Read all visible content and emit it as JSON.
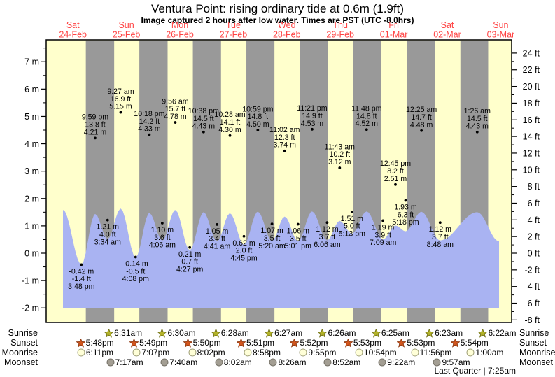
{
  "title": "Ventura Point: rising  ordinary tide at 0.6m (1.9ft)",
  "subtitle": "Image captured 2 hours after low water. Times are PST (UTC -8.0hrs)",
  "chart_data": {
    "type": "area",
    "title": "Ventura Point: rising ordinary tide at 0.6m (1.9ft)",
    "grid": false,
    "legend_position": "none",
    "x_axis": {
      "days": [
        {
          "weekday": "Sat",
          "date": "24-Feb"
        },
        {
          "weekday": "Sun",
          "date": "25-Feb"
        },
        {
          "weekday": "Mon",
          "date": "26-Feb"
        },
        {
          "weekday": "Tue",
          "date": "27-Feb"
        },
        {
          "weekday": "Wed",
          "date": "28-Feb"
        },
        {
          "weekday": "Thu",
          "date": "29-Feb"
        },
        {
          "weekday": "Fri",
          "date": "01-Mar"
        },
        {
          "weekday": "Sat",
          "date": "02-Mar"
        },
        {
          "weekday": "Sun",
          "date": "03-Mar"
        }
      ]
    },
    "y_left": {
      "unit": "m",
      "min": -2,
      "max": 7,
      "ticks": [
        {
          "v": 7,
          "label": "7 m"
        },
        {
          "v": 6,
          "label": "6 m"
        },
        {
          "v": 5,
          "label": "5 m"
        },
        {
          "v": 4,
          "label": "4 m"
        },
        {
          "v": 3,
          "label": "3 m"
        },
        {
          "v": 2,
          "label": "2 m"
        },
        {
          "v": 1,
          "label": "1 m"
        },
        {
          "v": 0,
          "label": "0 m"
        },
        {
          "v": -1,
          "label": "-1 m"
        },
        {
          "v": -2,
          "label": "-2 m"
        }
      ]
    },
    "y_right": {
      "unit": "ft",
      "min": -8,
      "max": 24,
      "ticks": [
        {
          "v": 24,
          "label": "24 ft"
        },
        {
          "v": 22,
          "label": "22 ft"
        },
        {
          "v": 20,
          "label": "20 ft"
        },
        {
          "v": 18,
          "label": "18 ft"
        },
        {
          "v": 16,
          "label": "16 ft"
        },
        {
          "v": 14,
          "label": "14 ft"
        },
        {
          "v": 12,
          "label": "12 ft"
        },
        {
          "v": 10,
          "label": "10 ft"
        },
        {
          "v": 8,
          "label": "8 ft"
        },
        {
          "v": 6,
          "label": "6 ft"
        },
        {
          "v": 4,
          "label": "4 ft"
        },
        {
          "v": 2,
          "label": "2 ft"
        },
        {
          "v": 0,
          "label": "0 ft"
        },
        {
          "v": -2,
          "label": "-2 ft"
        },
        {
          "v": -4,
          "label": "-4 ft"
        },
        {
          "v": -6,
          "label": "-6 ft"
        },
        {
          "v": -8,
          "label": "-8 ft"
        }
      ]
    },
    "tide_events": [
      {
        "type": "low",
        "day": 0,
        "time": "3:48 pm",
        "ft": "-1.4 ft",
        "m": "-0.42 m",
        "m_val": -0.42
      },
      {
        "type": "high",
        "day": 0,
        "time": "9:59 pm",
        "ft": "13.8 ft",
        "m": "4.21 m",
        "m_val": 4.21
      },
      {
        "type": "low",
        "day": 1,
        "time": "3:34 am",
        "ft": "4.0 ft",
        "m": "1.21 m",
        "m_val": 1.21
      },
      {
        "type": "high",
        "day": 1,
        "time": "9:27 am",
        "ft": "16.9 ft",
        "m": "5.15 m",
        "m_val": 5.15
      },
      {
        "type": "low",
        "day": 1,
        "time": "4:08 pm",
        "ft": "-0.5 ft",
        "m": "-0.14 m",
        "m_val": -0.14
      },
      {
        "type": "high",
        "day": 1,
        "time": "10:18 pm",
        "ft": "14.2 ft",
        "m": "4.33 m",
        "m_val": 4.33
      },
      {
        "type": "low",
        "day": 2,
        "time": "4:06 am",
        "ft": "3.6 ft",
        "m": "1.10 m",
        "m_val": 1.1
      },
      {
        "type": "high",
        "day": 2,
        "time": "9:56 am",
        "ft": "15.7 ft",
        "m": "4.78 m",
        "m_val": 4.78
      },
      {
        "type": "low",
        "day": 2,
        "time": "4:27 pm",
        "ft": "0.7 ft",
        "m": "0.21 m",
        "m_val": 0.21
      },
      {
        "type": "high",
        "day": 2,
        "time": "10:38 pm",
        "ft": "14.5 ft",
        "m": "4.43 m",
        "m_val": 4.43
      },
      {
        "type": "low",
        "day": 3,
        "time": "4:41 am",
        "ft": "3.4 ft",
        "m": "1.05 m",
        "m_val": 1.05
      },
      {
        "type": "high",
        "day": 3,
        "time": "10:28 am",
        "ft": "14.1 ft",
        "m": "4.30 m",
        "m_val": 4.3
      },
      {
        "type": "low",
        "day": 3,
        "time": "4:45 pm",
        "ft": "2.0 ft",
        "m": "0.62 m",
        "m_val": 0.62
      },
      {
        "type": "high",
        "day": 3,
        "time": "10:59 pm",
        "ft": "14.8 ft",
        "m": "4.50 m",
        "m_val": 4.5
      },
      {
        "type": "low",
        "day": 4,
        "time": "5:20 am",
        "ft": "3.5 ft",
        "m": "1.07 m",
        "m_val": 1.07
      },
      {
        "type": "high",
        "day": 4,
        "time": "11:02 am",
        "ft": "12.3 ft",
        "m": "3.74 m",
        "m_val": 3.74
      },
      {
        "type": "low",
        "day": 4,
        "time": "5:01 pm",
        "ft": "3.5 ft",
        "m": "1.06 m",
        "m_val": 1.06
      },
      {
        "type": "high",
        "day": 4,
        "time": "11:21 pm",
        "ft": "14.9 ft",
        "m": "4.53 m",
        "m_val": 4.53
      },
      {
        "type": "low",
        "day": 5,
        "time": "6:06 am",
        "ft": "3.7 ft",
        "m": "1.12 m",
        "m_val": 1.12
      },
      {
        "type": "high",
        "day": 5,
        "time": "11:43 am",
        "ft": "10.2 ft",
        "m": "3.12 m",
        "m_val": 3.12
      },
      {
        "type": "low",
        "day": 5,
        "time": "5:13 pm",
        "ft": "5.0 ft",
        "m": "1.51 m",
        "m_val": 1.51
      },
      {
        "type": "high",
        "day": 5,
        "time": "11:48 pm",
        "ft": "14.8 ft",
        "m": "4.52 m",
        "m_val": 4.52
      },
      {
        "type": "low",
        "day": 6,
        "time": "7:09 am",
        "ft": "3.9 ft",
        "m": "1.19 m",
        "m_val": 1.19
      },
      {
        "type": "high",
        "day": 6,
        "time": "12:45 pm",
        "ft": "8.2 ft",
        "m": "2.51 m",
        "m_val": 2.51
      },
      {
        "type": "low",
        "day": 6,
        "time": "5:18 pm",
        "ft": "6.3 ft",
        "m": "1.93 m",
        "m_val": 1.93
      },
      {
        "type": "high",
        "day": 7,
        "time": "12:25 am",
        "ft": "14.7 ft",
        "m": "4.48 m",
        "m_val": 4.48
      },
      {
        "type": "low",
        "day": 7,
        "time": "8:48 am",
        "ft": "3.7 ft",
        "m": "1.12 m",
        "m_val": 1.12
      },
      {
        "type": "high",
        "day": 8,
        "time": "1:26 am",
        "ft": "14.5 ft",
        "m": "4.43 m",
        "m_val": 4.43
      }
    ]
  },
  "almanac": {
    "row_labels": [
      "Sunrise",
      "Sunset",
      "Moonrise",
      "Moonset"
    ],
    "rows": [
      {
        "name": "sunrise",
        "icon": "sunrise-star",
        "events": [
          {
            "day": 1,
            "time": "6:31am"
          },
          {
            "day": 2,
            "time": "6:30am"
          },
          {
            "day": 3,
            "time": "6:28am"
          },
          {
            "day": 4,
            "time": "6:27am"
          },
          {
            "day": 5,
            "time": "6:26am"
          },
          {
            "day": 6,
            "time": "6:25am"
          },
          {
            "day": 7,
            "time": "6:23am"
          },
          {
            "day": 8,
            "time": "6:22am"
          }
        ]
      },
      {
        "name": "sunset",
        "icon": "sunset-star",
        "events": [
          {
            "day": 0,
            "time": "5:48pm"
          },
          {
            "day": 1,
            "time": "5:49pm"
          },
          {
            "day": 2,
            "time": "5:50pm"
          },
          {
            "day": 3,
            "time": "5:51pm"
          },
          {
            "day": 4,
            "time": "5:52pm"
          },
          {
            "day": 5,
            "time": "5:53pm"
          },
          {
            "day": 6,
            "time": "5:53pm"
          },
          {
            "day": 7,
            "time": "5:54pm"
          }
        ]
      },
      {
        "name": "moonrise",
        "icon": "moonrise-circle",
        "events": [
          {
            "day": 0,
            "time": "6:11pm"
          },
          {
            "day": 1,
            "time": "7:07pm"
          },
          {
            "day": 2,
            "time": "8:02pm"
          },
          {
            "day": 3,
            "time": "8:58pm"
          },
          {
            "day": 4,
            "time": "9:55pm"
          },
          {
            "day": 5,
            "time": "10:54pm"
          },
          {
            "day": 6,
            "time": "11:56pm"
          },
          {
            "day": 8,
            "time": "1:00am"
          }
        ]
      },
      {
        "name": "moonset",
        "icon": "moonset-circle",
        "events": [
          {
            "day": 1,
            "time": "7:17am"
          },
          {
            "day": 2,
            "time": "7:40am"
          },
          {
            "day": 3,
            "time": "8:02am"
          },
          {
            "day": 4,
            "time": "8:26am"
          },
          {
            "day": 5,
            "time": "8:52am"
          },
          {
            "day": 6,
            "time": "9:22am"
          },
          {
            "day": 7,
            "time": "9:57am"
          }
        ]
      }
    ],
    "moon_phase": "Last Quarter | 7:25am"
  },
  "colors": {
    "background": "#ffffff",
    "daylight_band": "#ffffcc",
    "night_band": "#999999",
    "tide_fill": "#a9b3f2",
    "date_label": "#ff4343",
    "text": "#000000",
    "sunrise_star": "#b3b328",
    "sunrise_star_stroke": "#73731c",
    "sunset_star": "#d4561d",
    "sunset_star_stroke": "#8f3a12",
    "moonrise_circle": "#ffffd8",
    "moonrise_circle_stroke": "#a0a078",
    "moonset_circle": "#a39e93",
    "moonset_circle_stroke": "#767268"
  }
}
